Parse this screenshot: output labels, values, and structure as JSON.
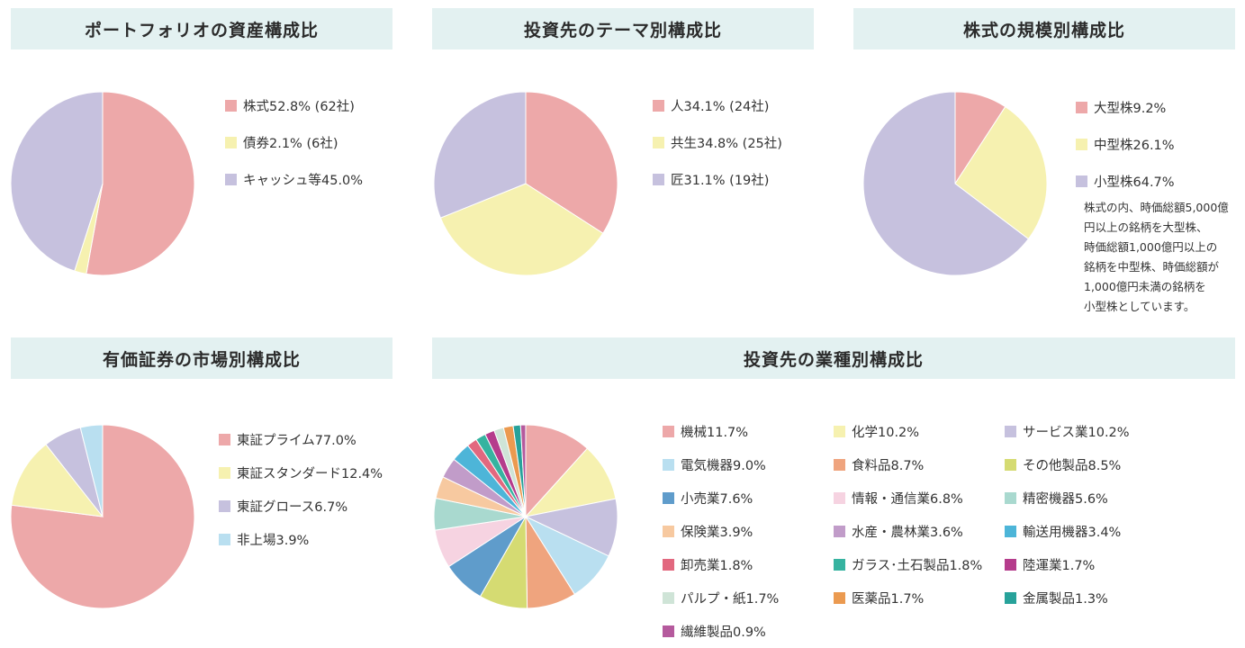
{
  "chart_data": [
    {
      "type": "pie",
      "title": "ポートフォリオの資産構成比",
      "slices": [
        {
          "label": "株式52.8% (62社)",
          "value": 52.8,
          "color": "#eda8a9"
        },
        {
          "label": "債券2.1% (6社)",
          "value": 2.1,
          "color": "#f6f1b0"
        },
        {
          "label": "キャッシュ等45.0%",
          "value": 45.0,
          "color": "#c6c1de"
        }
      ]
    },
    {
      "type": "pie",
      "title": "投資先のテーマ別構成比",
      "slices": [
        {
          "label": "人34.1% (24社)",
          "value": 34.1,
          "color": "#eda8a9"
        },
        {
          "label": "共生34.8% (25社)",
          "value": 34.8,
          "color": "#f6f1b0"
        },
        {
          "label": "匠31.1% (19社)",
          "value": 31.1,
          "color": "#c6c1de"
        }
      ]
    },
    {
      "type": "pie",
      "title": "株式の規模別構成比",
      "slices": [
        {
          "label": "大型株9.2%",
          "value": 9.2,
          "color": "#eda8a9"
        },
        {
          "label": "中型株26.1%",
          "value": 26.1,
          "color": "#f6f1b0"
        },
        {
          "label": "小型株64.7%",
          "value": 64.7,
          "color": "#c6c1de"
        }
      ],
      "note": [
        "株式の内、時価総額5,000億",
        "円以上の銘柄を大型株、",
        "時価総額1,000億円以上の",
        "銘柄を中型株、時価総額が",
        "1,000億円未満の銘柄を",
        "小型株としています。"
      ]
    },
    {
      "type": "pie",
      "title": "有価証券の市場別構成比",
      "slices": [
        {
          "label": "東証プライム77.0%",
          "value": 77.0,
          "color": "#eda8a9"
        },
        {
          "label": "東証スタンダード12.4%",
          "value": 12.4,
          "color": "#f6f1b0"
        },
        {
          "label": "東証グロース6.7%",
          "value": 6.7,
          "color": "#c6c1de"
        },
        {
          "label": "非上場3.9%",
          "value": 3.9,
          "color": "#b9dff0"
        }
      ]
    },
    {
      "type": "pie",
      "title": "投資先の業種別構成比",
      "slices": [
        {
          "label": "機械11.7%",
          "value": 11.7,
          "color": "#eda8a9"
        },
        {
          "label": "化学10.2%",
          "value": 10.2,
          "color": "#f6f1b0"
        },
        {
          "label": "サービス業10.2%",
          "value": 10.2,
          "color": "#c6c1de"
        },
        {
          "label": "電気機器9.0%",
          "value": 9.0,
          "color": "#b9dff0"
        },
        {
          "label": "食料品8.7%",
          "value": 8.7,
          "color": "#efa47e"
        },
        {
          "label": "その他製品8.5%",
          "value": 8.5,
          "color": "#d5db72"
        },
        {
          "label": "小売業7.6%",
          "value": 7.6,
          "color": "#5f9ccb"
        },
        {
          "label": "情報・通信業6.8%",
          "value": 6.8,
          "color": "#f6d3e1"
        },
        {
          "label": "精密機器5.6%",
          "value": 5.6,
          "color": "#a9d9cf"
        },
        {
          "label": "保険業3.9%",
          "value": 3.9,
          "color": "#f7c9a0"
        },
        {
          "label": "水産・農林業3.6%",
          "value": 3.6,
          "color": "#c19cc9"
        },
        {
          "label": "輸送用機器3.4%",
          "value": 3.4,
          "color": "#4db5d8"
        },
        {
          "label": "卸売業1.8%",
          "value": 1.8,
          "color": "#e2687f"
        },
        {
          "label": "ガラス･土石製品1.8%",
          "value": 1.8,
          "color": "#36b3a0"
        },
        {
          "label": "陸運業1.7%",
          "value": 1.7,
          "color": "#b53c8c"
        },
        {
          "label": "パルプ・紙1.7%",
          "value": 1.7,
          "color": "#cfe4d7"
        },
        {
          "label": "医薬品1.7%",
          "value": 1.7,
          "color": "#eb9a50"
        },
        {
          "label": "金属製品1.3%",
          "value": 1.3,
          "color": "#27a29a"
        },
        {
          "label": "繊維製品0.9%",
          "value": 0.9,
          "color": "#b55a9d"
        }
      ]
    }
  ]
}
